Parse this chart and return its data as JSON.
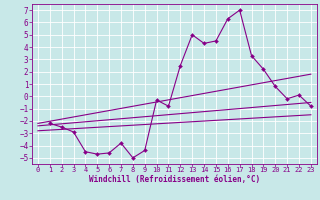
{
  "background_color": "#c8e8e8",
  "grid_color": "#b0d8d8",
  "plot_bg": "#c8e8e8",
  "line_color": "#880088",
  "marker_color": "#880088",
  "xlabel": "Windchill (Refroidissement éolien,°C)",
  "xlabel_fontsize": 5.5,
  "tick_fontsize": 5.0,
  "ytick_fontsize": 5.5,
  "xlim": [
    -0.5,
    23.5
  ],
  "ylim": [
    -5.5,
    7.5
  ],
  "xticks": [
    0,
    1,
    2,
    3,
    4,
    5,
    6,
    7,
    8,
    9,
    10,
    11,
    12,
    13,
    14,
    15,
    16,
    17,
    18,
    19,
    20,
    21,
    22,
    23
  ],
  "yticks": [
    -5,
    -4,
    -3,
    -2,
    -1,
    0,
    1,
    2,
    3,
    4,
    5,
    6,
    7
  ],
  "series": [
    [
      1,
      -2.2
    ],
    [
      2,
      -2.5
    ],
    [
      3,
      -2.9
    ],
    [
      4,
      -4.5
    ],
    [
      5,
      -4.7
    ],
    [
      6,
      -4.6
    ],
    [
      7,
      -3.8
    ],
    [
      8,
      -5.0
    ],
    [
      9,
      -4.4
    ],
    [
      10,
      -0.3
    ],
    [
      11,
      -0.8
    ],
    [
      12,
      2.5
    ],
    [
      13,
      5.0
    ],
    [
      14,
      4.3
    ],
    [
      15,
      4.5
    ],
    [
      16,
      6.3
    ],
    [
      17,
      7.0
    ],
    [
      18,
      3.3
    ],
    [
      19,
      2.2
    ],
    [
      20,
      0.8
    ],
    [
      21,
      -0.2
    ],
    [
      22,
      0.1
    ],
    [
      23,
      -0.8
    ]
  ],
  "line1": [
    [
      0,
      -2.4
    ],
    [
      23,
      -0.5
    ]
  ],
  "line2": [
    [
      0,
      -2.2
    ],
    [
      23,
      1.8
    ]
  ],
  "line3": [
    [
      0,
      -2.8
    ],
    [
      23,
      -1.5
    ]
  ]
}
